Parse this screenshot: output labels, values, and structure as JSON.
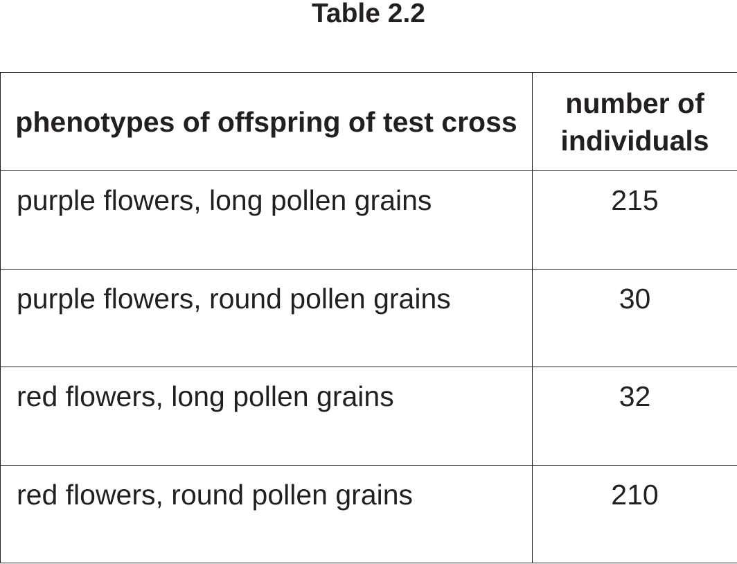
{
  "caption": "Table 2.2",
  "table": {
    "headers": {
      "phenotype": "phenotypes of offspring of test cross",
      "count": "number of individuals"
    },
    "rows": [
      {
        "phenotype": "purple flowers, long pollen grains",
        "count": "215"
      },
      {
        "phenotype": "purple flowers, round pollen grains",
        "count": "30"
      },
      {
        "phenotype": "red flowers, long pollen grains",
        "count": "32"
      },
      {
        "phenotype": "red flowers, round pollen grains",
        "count": "210"
      }
    ]
  }
}
